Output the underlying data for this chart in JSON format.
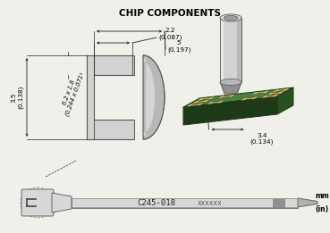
{
  "title": "CHIP COMPONENTS",
  "title_fontsize": 7.5,
  "title_fontweight": "bold",
  "bg_color": "#f0f0eb",
  "dim_labels": {
    "top_width": "2.2\n(0.087)",
    "mid_width": "5\n(0.197)",
    "height_left": "3.5\n(0.138)",
    "diag_label": "6.2 x 1.8\n(0.244 x 0.071)",
    "board_width": "3.4\n(0.134)"
  },
  "part_number": "C245-018",
  "part_suffix": "xxxxxx",
  "unit_label_top": "mm",
  "unit_label_bot": "(in)",
  "tip_light": "#d2d2d2",
  "tip_mid": "#b8b8b8",
  "tip_dark": "#909090",
  "tip_highlight": "#e8e8e8",
  "board_top": "#4e8040",
  "board_side": "#2a5020",
  "board_front": "#1e3a18",
  "comp_body": "#c8a84a",
  "comp_term": "#d8d0b0",
  "handle_light": "#d8d8d8",
  "handle_dark": "#b0b0b0",
  "handle_band": "#909090",
  "dim_color": "#222222",
  "dim_lw": 0.6
}
